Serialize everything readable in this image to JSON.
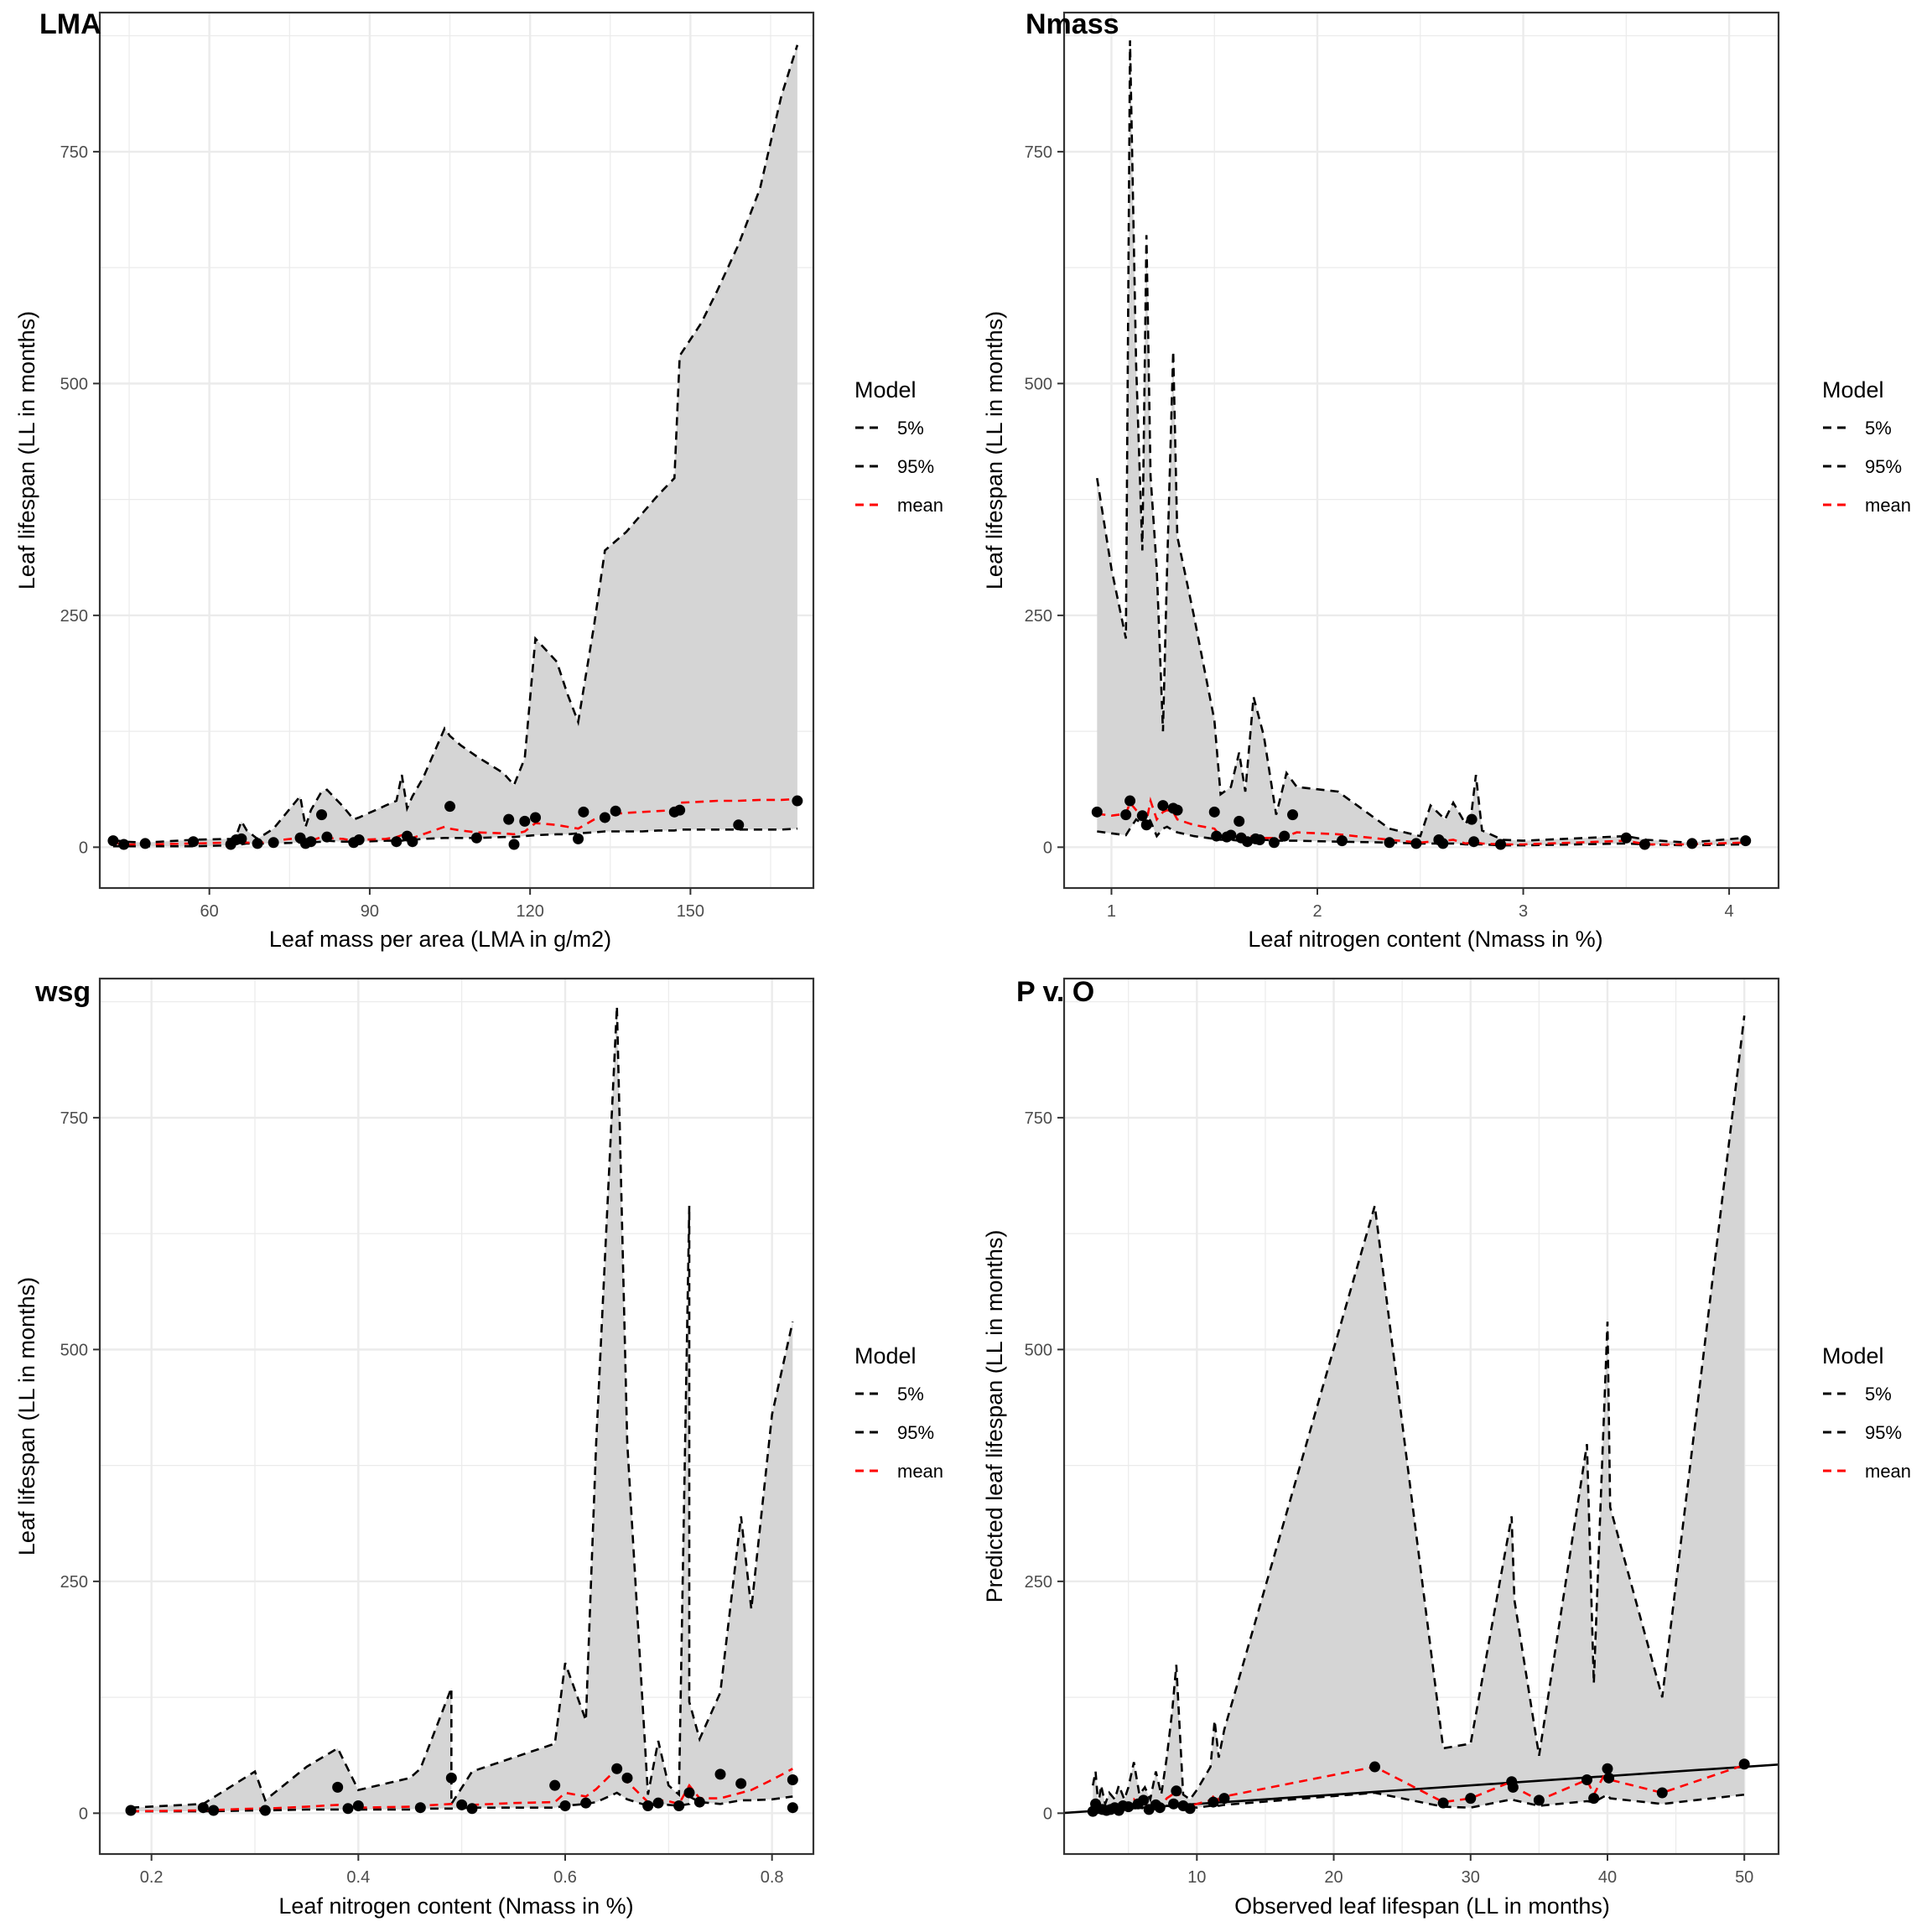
{
  "colors": {
    "ribbon_fill": "#d5d5d5",
    "grid": "#ebebeb",
    "panel_border": "#333333",
    "quantile_line": "#000000",
    "mean_line": "#ff0000",
    "points": "#000000",
    "one_to_one_line": "#000000"
  },
  "legend": {
    "title": "Model",
    "entries": [
      {
        "label": "5%",
        "color": "#000000"
      },
      {
        "label": "95%",
        "color": "#000000"
      },
      {
        "label": "mean",
        "color": "#ff0000"
      }
    ]
  },
  "chart_data": [
    {
      "id": "lma",
      "type": "line",
      "title": "LMA",
      "xlabel": "Leaf mass per area (LMA in g/m2)",
      "ylabel": "Leaf lifespan (LL in months)",
      "xlim": [
        39.5,
        173
      ],
      "ylim": [
        -44,
        900
      ],
      "xticks": [
        {
          "value": 60,
          "label": "60"
        },
        {
          "value": 90,
          "label": "90"
        },
        {
          "value": 120,
          "label": "120"
        },
        {
          "value": 150,
          "label": "150"
        }
      ],
      "yticks": [
        {
          "value": 0,
          "label": "0"
        },
        {
          "value": 250,
          "label": "250"
        },
        {
          "value": 500,
          "label": "500"
        },
        {
          "value": 750,
          "label": "750"
        }
      ],
      "xminor": [
        45,
        75,
        105,
        135,
        165
      ],
      "yminor": [
        125,
        375,
        625,
        875
      ],
      "x": [
        42,
        44,
        48,
        57,
        64,
        65,
        66,
        67,
        69,
        72,
        77,
        78,
        79,
        81,
        82,
        85,
        87,
        88,
        93,
        95,
        96,
        97,
        98,
        100,
        104,
        105,
        107,
        110,
        115,
        117,
        119,
        121,
        125,
        127,
        129,
        132,
        134,
        138,
        141,
        144,
        147,
        148,
        152,
        155,
        159,
        163,
        165,
        167,
        170
      ],
      "lower": [
        1,
        1,
        1,
        1,
        2,
        3,
        3,
        4,
        4,
        4,
        5,
        5,
        5,
        6,
        7,
        6,
        6,
        6,
        7,
        7,
        7,
        8,
        8,
        9,
        10,
        10,
        10,
        10,
        11,
        11,
        12,
        13,
        14,
        14,
        15,
        16,
        17,
        17,
        17,
        18,
        18,
        19,
        19,
        19,
        19,
        19,
        19,
        19,
        20
      ],
      "upper": [
        8,
        6,
        5,
        8,
        9,
        12,
        28,
        18,
        9,
        20,
        55,
        22,
        40,
        60,
        62,
        44,
        30,
        32,
        45,
        50,
        78,
        42,
        55,
        75,
        128,
        120,
        110,
        98,
        80,
        67,
        96,
        225,
        200,
        165,
        135,
        240,
        320,
        340,
        360,
        380,
        398,
        530,
        565,
        600,
        650,
        710,
        760,
        810,
        865
      ],
      "mean": [
        5,
        3,
        3,
        4,
        5,
        5,
        6,
        5,
        4,
        7,
        10,
        8,
        7,
        11,
        10,
        9,
        7,
        8,
        9,
        11,
        13,
        12,
        10,
        14,
        22,
        20,
        18,
        16,
        15,
        14,
        17,
        26,
        24,
        22,
        20,
        30,
        35,
        37,
        38,
        39,
        40,
        48,
        49,
        50,
        50,
        51,
        51,
        51,
        52
      ],
      "points": [
        [
          42,
          7
        ],
        [
          44,
          3
        ],
        [
          48,
          4
        ],
        [
          57,
          6
        ],
        [
          64,
          3
        ],
        [
          65,
          8
        ],
        [
          66,
          9
        ],
        [
          69,
          4
        ],
        [
          72,
          5
        ],
        [
          77,
          10
        ],
        [
          78,
          4
        ],
        [
          79,
          6
        ],
        [
          81,
          35
        ],
        [
          82,
          11
        ],
        [
          87,
          5
        ],
        [
          88,
          8
        ],
        [
          95,
          6
        ],
        [
          97,
          12
        ],
        [
          98,
          6
        ],
        [
          105,
          44
        ],
        [
          110,
          10
        ],
        [
          116,
          30
        ],
        [
          117,
          3
        ],
        [
          119,
          28
        ],
        [
          121,
          32
        ],
        [
          129,
          9
        ],
        [
          130,
          38
        ],
        [
          134,
          32
        ],
        [
          136,
          39
        ],
        [
          147,
          38
        ],
        [
          148,
          40
        ],
        [
          159,
          24
        ],
        [
          170,
          50
        ]
      ]
    },
    {
      "id": "nmass",
      "type": "line",
      "title": "Nmass",
      "xlabel": "Leaf nitrogen content (Nmass in %)",
      "ylabel": "Leaf lifespan (LL in months)",
      "xlim": [
        0.77,
        4.24
      ],
      "ylim": [
        -44,
        900
      ],
      "xticks": [
        {
          "value": 1,
          "label": "1"
        },
        {
          "value": 2,
          "label": "2"
        },
        {
          "value": 3,
          "label": "3"
        },
        {
          "value": 4,
          "label": "4"
        }
      ],
      "yticks": [
        {
          "value": 0,
          "label": "0"
        },
        {
          "value": 250,
          "label": "250"
        },
        {
          "value": 500,
          "label": "500"
        },
        {
          "value": 750,
          "label": "750"
        }
      ],
      "xminor": [
        1.5,
        2.5,
        3.5
      ],
      "yminor": [
        125,
        375,
        625,
        875
      ],
      "x": [
        0.93,
        1.0,
        1.07,
        1.09,
        1.12,
        1.15,
        1.17,
        1.19,
        1.22,
        1.25,
        1.27,
        1.3,
        1.32,
        1.4,
        1.5,
        1.53,
        1.58,
        1.62,
        1.65,
        1.69,
        1.74,
        1.8,
        1.85,
        1.9,
        2.1,
        2.35,
        2.5,
        2.55,
        2.62,
        2.66,
        2.72,
        2.75,
        2.77,
        2.8,
        2.9,
        3.0,
        3.5,
        3.6,
        3.8,
        4.07
      ],
      "lower": [
        17,
        15,
        13,
        20,
        30,
        25,
        35,
        28,
        12,
        20,
        22,
        18,
        16,
        12,
        9,
        8,
        8,
        7,
        6,
        7,
        8,
        7,
        7,
        7,
        6,
        5,
        4,
        4,
        4,
        4,
        3,
        3,
        3,
        3,
        2,
        2,
        4,
        3,
        2,
        3
      ],
      "upper": [
        398,
        300,
        225,
        870,
        520,
        320,
        660,
        400,
        300,
        125,
        300,
        535,
        335,
        250,
        137,
        57,
        65,
        102,
        60,
        162,
        120,
        35,
        80,
        65,
        60,
        20,
        12,
        45,
        30,
        48,
        25,
        40,
        78,
        18,
        8,
        7,
        12,
        8,
        5,
        10
      ],
      "mean": [
        36,
        34,
        36,
        48,
        40,
        34,
        28,
        50,
        30,
        38,
        40,
        38,
        30,
        24,
        20,
        12,
        11,
        12,
        10,
        12,
        10,
        10,
        12,
        16,
        14,
        8,
        5,
        6,
        7,
        8,
        4,
        5,
        5,
        4,
        3,
        3,
        7,
        3,
        3,
        5
      ],
      "points": [
        [
          0.93,
          38
        ],
        [
          1.07,
          35
        ],
        [
          1.09,
          50
        ],
        [
          1.15,
          34
        ],
        [
          1.17,
          24
        ],
        [
          1.25,
          45
        ],
        [
          1.3,
          42
        ],
        [
          1.32,
          40
        ],
        [
          1.5,
          38
        ],
        [
          1.51,
          12
        ],
        [
          1.56,
          11
        ],
        [
          1.58,
          13
        ],
        [
          1.62,
          28
        ],
        [
          1.63,
          10
        ],
        [
          1.66,
          6
        ],
        [
          1.7,
          9
        ],
        [
          1.72,
          8
        ],
        [
          1.79,
          5
        ],
        [
          1.84,
          12
        ],
        [
          1.88,
          35
        ],
        [
          2.12,
          7
        ],
        [
          2.35,
          5
        ],
        [
          2.48,
          4
        ],
        [
          2.59,
          8
        ],
        [
          2.61,
          4
        ],
        [
          2.75,
          30
        ],
        [
          2.76,
          6
        ],
        [
          2.89,
          3
        ],
        [
          3.5,
          10
        ],
        [
          3.59,
          3
        ],
        [
          3.82,
          4
        ],
        [
          4.08,
          7
        ]
      ]
    },
    {
      "id": "wsg",
      "type": "line",
      "title": "wsg",
      "xlabel": "Leaf nitrogen content (Nmass in %)",
      "ylabel": "Leaf lifespan (LL in months)",
      "xlim": [
        0.15,
        0.84
      ],
      "ylim": [
        -44,
        900
      ],
      "xticks": [
        {
          "value": 0.2,
          "label": "0.2"
        },
        {
          "value": 0.4,
          "label": "0.4"
        },
        {
          "value": 0.6,
          "label": "0.6"
        },
        {
          "value": 0.8,
          "label": "0.8"
        }
      ],
      "yticks": [
        {
          "value": 0,
          "label": "0"
        },
        {
          "value": 250,
          "label": "250"
        },
        {
          "value": 500,
          "label": "500"
        },
        {
          "value": 750,
          "label": "750"
        }
      ],
      "xminor": [
        0.3,
        0.5,
        0.7
      ],
      "yminor": [
        125,
        375,
        625,
        875
      ],
      "x": [
        0.18,
        0.25,
        0.3,
        0.31,
        0.35,
        0.38,
        0.4,
        0.45,
        0.46,
        0.49,
        0.49,
        0.51,
        0.55,
        0.59,
        0.6,
        0.62,
        0.63,
        0.65,
        0.66,
        0.68,
        0.69,
        0.7,
        0.71,
        0.72,
        0.72,
        0.73,
        0.75,
        0.77,
        0.78,
        0.8,
        0.82
      ],
      "lower": [
        2,
        2,
        3,
        3,
        4,
        4,
        4,
        4,
        5,
        5,
        5,
        6,
        6,
        6,
        8,
        10,
        12,
        22,
        15,
        8,
        10,
        9,
        8,
        10,
        18,
        12,
        10,
        14,
        14,
        15,
        18
      ],
      "upper": [
        6,
        10,
        45,
        14,
        50,
        70,
        25,
        38,
        48,
        135,
        10,
        45,
        60,
        75,
        162,
        100,
        400,
        870,
        400,
        20,
        78,
        30,
        20,
        655,
        120,
        80,
        130,
        320,
        220,
        430,
        530
      ],
      "mean": [
        2,
        3,
        5,
        5,
        7,
        9,
        6,
        7,
        8,
        10,
        8,
        9,
        11,
        12,
        22,
        18,
        26,
        48,
        34,
        12,
        14,
        13,
        10,
        30,
        30,
        16,
        16,
        22,
        25,
        36,
        48
      ],
      "points": [
        [
          0.18,
          3
        ],
        [
          0.25,
          6
        ],
        [
          0.26,
          3
        ],
        [
          0.31,
          3
        ],
        [
          0.38,
          28
        ],
        [
          0.39,
          5
        ],
        [
          0.4,
          8
        ],
        [
          0.46,
          6
        ],
        [
          0.49,
          38
        ],
        [
          0.5,
          9
        ],
        [
          0.51,
          5
        ],
        [
          0.59,
          30
        ],
        [
          0.6,
          8
        ],
        [
          0.62,
          11
        ],
        [
          0.65,
          48
        ],
        [
          0.66,
          38
        ],
        [
          0.68,
          8
        ],
        [
          0.69,
          11
        ],
        [
          0.71,
          8
        ],
        [
          0.72,
          22
        ],
        [
          0.73,
          12
        ],
        [
          0.75,
          42
        ],
        [
          0.77,
          32
        ],
        [
          0.82,
          36
        ],
        [
          0.82,
          6
        ]
      ]
    },
    {
      "id": "pvo",
      "type": "line",
      "title": "P v. O",
      "xlabel": "Observed leaf lifespan (LL in months)",
      "ylabel": "Predicted leaf lifespan (LL in months)",
      "xlim": [
        0.3,
        52.5
      ],
      "ylim": [
        -44,
        900
      ],
      "xticks": [
        {
          "value": 10,
          "label": "10"
        },
        {
          "value": 20,
          "label": "20"
        },
        {
          "value": 30,
          "label": "30"
        },
        {
          "value": 40,
          "label": "40"
        },
        {
          "value": 50,
          "label": "50"
        }
      ],
      "yticks": [
        {
          "value": 0,
          "label": "0"
        },
        {
          "value": 250,
          "label": "250"
        },
        {
          "value": 500,
          "label": "500"
        },
        {
          "value": 750,
          "label": "750"
        }
      ],
      "xminor": [
        5,
        15,
        25,
        35,
        45
      ],
      "yminor": [
        125,
        375,
        625,
        875
      ],
      "x": [
        2.4,
        2.6,
        2.8,
        3.0,
        3.3,
        3.6,
        4.0,
        4.3,
        4.7,
        5.0,
        5.4,
        5.8,
        6.2,
        6.6,
        7.0,
        7.4,
        7.8,
        8.2,
        8.5,
        9.0,
        9.5,
        10.0,
        11.0,
        11.3,
        11.6,
        12.0,
        23.0,
        28.0,
        30.0,
        33.0,
        33.2,
        35.0,
        38.5,
        39.0,
        40.0,
        40.2,
        44.0,
        50.0
      ],
      "lower": [
        2,
        3,
        2,
        3,
        2,
        3,
        3,
        4,
        4,
        4,
        5,
        6,
        5,
        6,
        5,
        6,
        8,
        7,
        10,
        6,
        7,
        6,
        8,
        10,
        8,
        9,
        22,
        7,
        6,
        15,
        14,
        8,
        13,
        12,
        20,
        16,
        10,
        20
      ],
      "upper": [
        30,
        45,
        8,
        30,
        10,
        22,
        15,
        30,
        15,
        28,
        55,
        20,
        28,
        15,
        45,
        20,
        60,
        110,
        160,
        20,
        15,
        25,
        50,
        100,
        60,
        90,
        655,
        70,
        75,
        320,
        230,
        62,
        398,
        140,
        530,
        330,
        125,
        860
      ],
      "mean": [
        4,
        10,
        4,
        8,
        4,
        6,
        5,
        9,
        6,
        8,
        15,
        8,
        10,
        6,
        12,
        8,
        16,
        20,
        26,
        10,
        8,
        10,
        14,
        20,
        14,
        18,
        50,
        12,
        16,
        34,
        28,
        14,
        36,
        20,
        48,
        36,
        22,
        52
      ],
      "points": [
        [
          2.4,
          2
        ],
        [
          2.6,
          10
        ],
        [
          2.8,
          5
        ],
        [
          3.1,
          4
        ],
        [
          3.4,
          3
        ],
        [
          3.7,
          4
        ],
        [
          4.0,
          6
        ],
        [
          4.3,
          3
        ],
        [
          4.6,
          8
        ],
        [
          5.0,
          7
        ],
        [
          5.7,
          10
        ],
        [
          6.1,
          14
        ],
        [
          6.5,
          4
        ],
        [
          7.0,
          9
        ],
        [
          7.3,
          6
        ],
        [
          8.3,
          10
        ],
        [
          8.5,
          24
        ],
        [
          9.0,
          8
        ],
        [
          9.5,
          5
        ],
        [
          11.2,
          12
        ],
        [
          12.0,
          16
        ],
        [
          23.0,
          50
        ],
        [
          28.0,
          11
        ],
        [
          30.0,
          16
        ],
        [
          33.0,
          34
        ],
        [
          33.1,
          28
        ],
        [
          35.0,
          14
        ],
        [
          38.5,
          36
        ],
        [
          39.0,
          16
        ],
        [
          40.0,
          48
        ],
        [
          40.1,
          38
        ],
        [
          44.0,
          22
        ],
        [
          50.0,
          53
        ]
      ],
      "reference_line": {
        "slope": 1,
        "intercept": 0
      }
    }
  ]
}
